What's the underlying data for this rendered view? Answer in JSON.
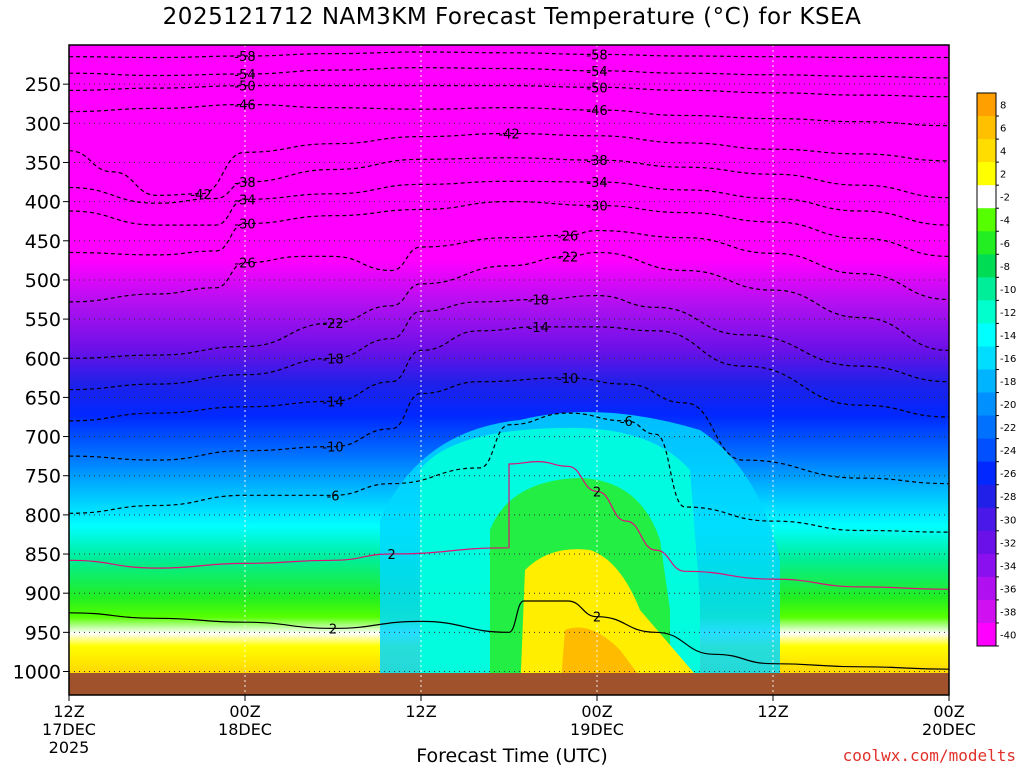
{
  "chart_data": {
    "type": "heatmap",
    "title": "2025121712 NAM3KM Forecast Temperature (°C) for KSEA",
    "xlabel": "Forecast Time (UTC)",
    "ylabel": "",
    "credit": "coolwx.com/modelts",
    "y_axis": {
      "reverse": true,
      "range": [
        200,
        1030
      ],
      "ticks": [
        250,
        300,
        350,
        400,
        450,
        500,
        550,
        600,
        650,
        700,
        750,
        800,
        850,
        900,
        950,
        1000
      ]
    },
    "x_axis": {
      "range_hours": [
        0,
        60
      ],
      "ticks": [
        {
          "hour": 0,
          "lines": [
            "12Z",
            "17DEC",
            "2025"
          ]
        },
        {
          "hour": 12,
          "lines": [
            "00Z",
            "18DEC"
          ]
        },
        {
          "hour": 24,
          "lines": [
            "12Z"
          ]
        },
        {
          "hour": 36,
          "lines": [
            "00Z",
            "19DEC"
          ]
        },
        {
          "hour": 48,
          "lines": [
            "12Z"
          ]
        },
        {
          "hour": 60,
          "lines": [
            "00Z",
            "20DEC"
          ]
        }
      ]
    },
    "colorbar": {
      "levels": [
        "8",
        "6",
        "4",
        "2",
        "-2",
        "-4",
        "-6",
        "-8",
        "-10",
        "-12",
        "-14",
        "-16",
        "-18",
        "-20",
        "-22",
        "-24",
        "-26",
        "-28",
        "-30",
        "-32",
        "-34",
        "-36",
        "-38",
        "-40"
      ],
      "colors": [
        "#ff9f00",
        "#ffc000",
        "#ffdd00",
        "#ffff00",
        "#ffffff",
        "#55ff00",
        "#22ee22",
        "#00dd55",
        "#00ee99",
        "#00ffcc",
        "#00ffff",
        "#00ddff",
        "#00b4ff",
        "#0090ff",
        "#0070ff",
        "#0050ff",
        "#0028ff",
        "#2020e8",
        "#4a18e8",
        "#6a10e8",
        "#8a10f0",
        "#b010f0",
        "#d010f0",
        "#ff00ff"
      ]
    },
    "isotherms": [
      {
        "label": "-58",
        "pts": [
          [
            0,
            215
          ],
          [
            6,
            216
          ],
          [
            12,
            214
          ],
          [
            18,
            211
          ],
          [
            24,
            209
          ],
          [
            30,
            210
          ],
          [
            36,
            212
          ],
          [
            42,
            214
          ],
          [
            48,
            215
          ],
          [
            54,
            216
          ],
          [
            60,
            216
          ]
        ]
      },
      {
        "label": "-54",
        "pts": [
          [
            0,
            236
          ],
          [
            6,
            239
          ],
          [
            12,
            237
          ],
          [
            18,
            232
          ],
          [
            24,
            229
          ],
          [
            30,
            230
          ],
          [
            36,
            233
          ],
          [
            42,
            236
          ],
          [
            48,
            238
          ],
          [
            54,
            240
          ],
          [
            60,
            242
          ]
        ]
      },
      {
        "label": "-50",
        "pts": [
          [
            0,
            258
          ],
          [
            6,
            255
          ],
          [
            12,
            252
          ],
          [
            18,
            252
          ],
          [
            24,
            252
          ],
          [
            30,
            252
          ],
          [
            36,
            254
          ],
          [
            42,
            258
          ],
          [
            48,
            261
          ],
          [
            54,
            264
          ],
          [
            60,
            266
          ]
        ]
      },
      {
        "label": "-46",
        "pts": [
          [
            0,
            285
          ],
          [
            6,
            281
          ],
          [
            12,
            276
          ],
          [
            18,
            280
          ],
          [
            24,
            282
          ],
          [
            30,
            280
          ],
          [
            36,
            283
          ],
          [
            42,
            290
          ],
          [
            48,
            294
          ],
          [
            54,
            298
          ],
          [
            60,
            303
          ]
        ]
      },
      {
        "label": "-42",
        "pts": [
          [
            0,
            335
          ],
          [
            3,
            362
          ],
          [
            6,
            392
          ],
          [
            9,
            390
          ],
          [
            12,
            337
          ],
          [
            18,
            326
          ],
          [
            24,
            317
          ],
          [
            30,
            313
          ],
          [
            36,
            316
          ],
          [
            42,
            325
          ],
          [
            48,
            333
          ],
          [
            54,
            339
          ],
          [
            60,
            348
          ]
        ]
      },
      {
        "label": "-38",
        "pts": [
          [
            0,
            382
          ],
          [
            6,
            402
          ],
          [
            10,
            396
          ],
          [
            12,
            375
          ],
          [
            18,
            359
          ],
          [
            24,
            346
          ],
          [
            30,
            344
          ],
          [
            36,
            347
          ],
          [
            42,
            356
          ],
          [
            48,
            365
          ],
          [
            54,
            379
          ],
          [
            60,
            395
          ]
        ]
      },
      {
        "label": "-34",
        "pts": [
          [
            0,
            412
          ],
          [
            6,
            430
          ],
          [
            10,
            430
          ],
          [
            12,
            397
          ],
          [
            18,
            390
          ],
          [
            24,
            378
          ],
          [
            30,
            374
          ],
          [
            36,
            375
          ],
          [
            42,
            385
          ],
          [
            48,
            396
          ],
          [
            54,
            412
          ],
          [
            60,
            430
          ]
        ]
      },
      {
        "label": "-30",
        "pts": [
          [
            0,
            465
          ],
          [
            6,
            468
          ],
          [
            10,
            463
          ],
          [
            12,
            428
          ],
          [
            18,
            418
          ],
          [
            24,
            410
          ],
          [
            30,
            400
          ],
          [
            36,
            405
          ],
          [
            42,
            414
          ],
          [
            48,
            426
          ],
          [
            54,
            447
          ],
          [
            60,
            470
          ]
        ]
      },
      {
        "label": "-26",
        "pts": [
          [
            0,
            528
          ],
          [
            6,
            518
          ],
          [
            10,
            510
          ],
          [
            12,
            478
          ],
          [
            16,
            470
          ],
          [
            18,
            470
          ],
          [
            22,
            488
          ],
          [
            24,
            458
          ],
          [
            30,
            446
          ],
          [
            34,
            443
          ],
          [
            36,
            437
          ],
          [
            42,
            446
          ],
          [
            48,
            466
          ],
          [
            54,
            492
          ],
          [
            60,
            525
          ]
        ]
      },
      {
        "label": "-22",
        "pts": [
          [
            0,
            600
          ],
          [
            6,
            596
          ],
          [
            12,
            585
          ],
          [
            18,
            555
          ],
          [
            22,
            533
          ],
          [
            24,
            505
          ],
          [
            30,
            482
          ],
          [
            34,
            470
          ],
          [
            36,
            465
          ],
          [
            42,
            488
          ],
          [
            48,
            513
          ],
          [
            54,
            548
          ],
          [
            60,
            590
          ]
        ]
      },
      {
        "label": "-18",
        "pts": [
          [
            0,
            640
          ],
          [
            6,
            633
          ],
          [
            12,
            621
          ],
          [
            18,
            600
          ],
          [
            22,
            575
          ],
          [
            24,
            540
          ],
          [
            28,
            528
          ],
          [
            32,
            525
          ],
          [
            36,
            520
          ],
          [
            40,
            535
          ],
          [
            46,
            570
          ],
          [
            54,
            610
          ],
          [
            60,
            630
          ]
        ]
      },
      {
        "label": "-14",
        "pts": [
          [
            0,
            680
          ],
          [
            6,
            670
          ],
          [
            12,
            662
          ],
          [
            18,
            655
          ],
          [
            22,
            630
          ],
          [
            24,
            590
          ],
          [
            28,
            565
          ],
          [
            32,
            560
          ],
          [
            36,
            560
          ],
          [
            40,
            565
          ],
          [
            46,
            610
          ],
          [
            54,
            660
          ],
          [
            60,
            675
          ]
        ]
      },
      {
        "label": "-10",
        "pts": [
          [
            0,
            725
          ],
          [
            6,
            730
          ],
          [
            12,
            718
          ],
          [
            18,
            713
          ],
          [
            22,
            690
          ],
          [
            24,
            645
          ],
          [
            28,
            630
          ],
          [
            34,
            625
          ],
          [
            38,
            633
          ],
          [
            42,
            657
          ],
          [
            46,
            730
          ],
          [
            54,
            753
          ],
          [
            60,
            760
          ]
        ]
      },
      {
        "label": "-6",
        "pts": [
          [
            0,
            798
          ],
          [
            6,
            788
          ],
          [
            12,
            775
          ],
          [
            18,
            775
          ],
          [
            22,
            760
          ],
          [
            28,
            740
          ],
          [
            30,
            685
          ],
          [
            34,
            670
          ],
          [
            38,
            680
          ],
          [
            40,
            697
          ],
          [
            42,
            790
          ],
          [
            48,
            808
          ],
          [
            54,
            820
          ],
          [
            60,
            822
          ]
        ]
      },
      {
        "label": "2",
        "color": "#dd1177",
        "pts": [
          [
            0,
            858
          ],
          [
            6,
            868
          ],
          [
            12,
            862
          ],
          [
            18,
            858
          ],
          [
            22,
            850
          ],
          [
            30,
            842
          ],
          [
            30,
            735
          ],
          [
            32,
            732
          ],
          [
            34,
            738
          ],
          [
            36,
            770
          ],
          [
            38,
            808
          ],
          [
            40,
            845
          ],
          [
            42,
            872
          ],
          [
            48,
            882
          ],
          [
            54,
            892
          ],
          [
            60,
            895
          ]
        ]
      },
      {
        "label": "2",
        "pts": [
          [
            0,
            925
          ],
          [
            6,
            932
          ],
          [
            12,
            937
          ],
          [
            18,
            945
          ],
          [
            24,
            936
          ],
          [
            30,
            950
          ],
          [
            31,
            910
          ],
          [
            34,
            910
          ],
          [
            36,
            930
          ],
          [
            40,
            950
          ],
          [
            44,
            978
          ],
          [
            48,
            990
          ],
          [
            54,
            994
          ],
          [
            60,
            997
          ]
        ]
      }
    ]
  }
}
